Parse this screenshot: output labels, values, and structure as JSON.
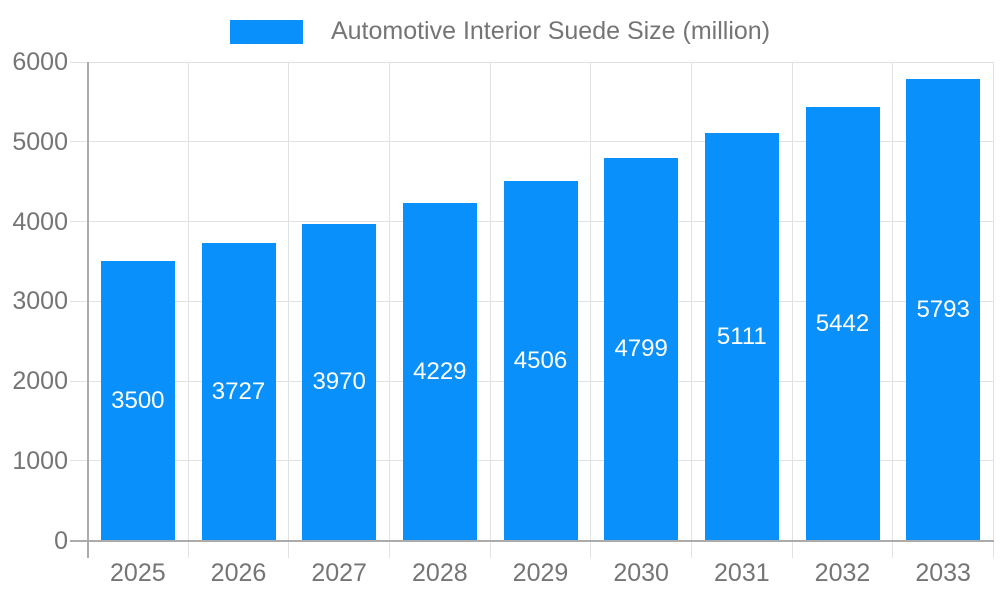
{
  "colors": {
    "bar": "#0990FA",
    "axis_text": "#757575",
    "value_text": "#FFFFFF",
    "grid_line": "#E2E2E2",
    "axis_line": "#ABABAB",
    "background": "#FFFFFF"
  },
  "chart_data": {
    "type": "bar",
    "title": "Automotive Interior Suede Size (million)",
    "categories": [
      "2025",
      "2026",
      "2027",
      "2028",
      "2029",
      "2030",
      "2031",
      "2032",
      "2033"
    ],
    "values": [
      3500,
      3727,
      3970,
      4229,
      4506,
      4799,
      5111,
      5442,
      5793
    ],
    "xlabel": "",
    "ylabel": "",
    "ylim": [
      0,
      6000
    ],
    "yticks": [
      0,
      1000,
      2000,
      3000,
      4000,
      5000,
      6000
    ],
    "grid": true,
    "legend_position": "top",
    "value_label_position": "inside-center"
  }
}
